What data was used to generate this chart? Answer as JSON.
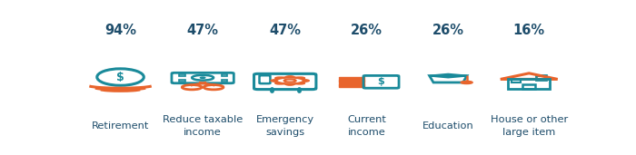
{
  "categories": [
    "Retirement",
    "Reduce taxable\nincome",
    "Emergency\nsavings",
    "Current\nincome",
    "Education",
    "House or other\nlarge item"
  ],
  "percentages": [
    "94%",
    "47%",
    "47%",
    "26%",
    "26%",
    "16%"
  ],
  "teal": "#1a8a9a",
  "orange": "#e8642c",
  "pct_color": "#1e4d6b",
  "label_color": "#1e4d6b",
  "bg_color": "#ffffff",
  "pct_fontsize": 10.5,
  "label_fontsize": 8.2,
  "positions": [
    0.083,
    0.25,
    0.417,
    0.583,
    0.748,
    0.912
  ],
  "fig_width": 7.0,
  "fig_height": 1.71
}
